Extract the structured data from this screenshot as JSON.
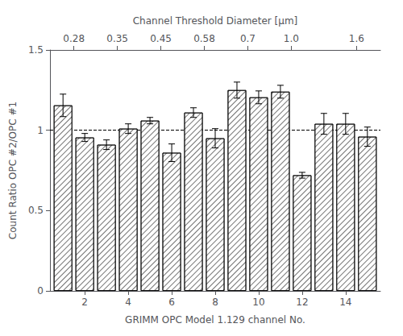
{
  "chart_data": {
    "type": "bar",
    "x": [
      1,
      2,
      3,
      4,
      5,
      6,
      7,
      8,
      9,
      10,
      11,
      12,
      13,
      14,
      15
    ],
    "values": [
      1.155,
      0.955,
      0.91,
      1.01,
      1.06,
      0.86,
      1.11,
      0.95,
      1.25,
      1.205,
      1.24,
      0.72,
      1.04,
      1.04,
      0.96
    ],
    "errors": [
      0.07,
      0.025,
      0.03,
      0.03,
      0.02,
      0.055,
      0.03,
      0.06,
      0.05,
      0.04,
      0.04,
      0.018,
      0.065,
      0.065,
      0.06
    ],
    "color": "#ffffff",
    "xlabel": "GRIMM OPC Model 1.129 channel No.",
    "ylabel": "Count Ratio OPC #2/OPC #1",
    "x2label": "Channel Threshold Diameter [μm]",
    "xlim": [
      0.4,
      15.6
    ],
    "xticks": [
      2,
      4,
      6,
      8,
      10,
      12,
      14
    ],
    "x2lim": [
      0.4,
      15.6
    ],
    "x2ticks": [
      {
        "value": 1.5,
        "label": "0.28"
      },
      {
        "value": 3.5,
        "label": "0.35"
      },
      {
        "value": 5.5,
        "label": "0.45"
      },
      {
        "value": 7.5,
        "label": "0.58"
      },
      {
        "value": 9.5,
        "label": "0.7"
      },
      {
        "value": 11.5,
        "label": "1.0"
      },
      {
        "value": 14.5,
        "label": "1.6"
      }
    ],
    "ylim": [
      0.0,
      1.5
    ],
    "yticks": [
      0.0,
      0.5,
      1.0,
      1.5
    ],
    "hline": 1.0,
    "grid": false
  }
}
